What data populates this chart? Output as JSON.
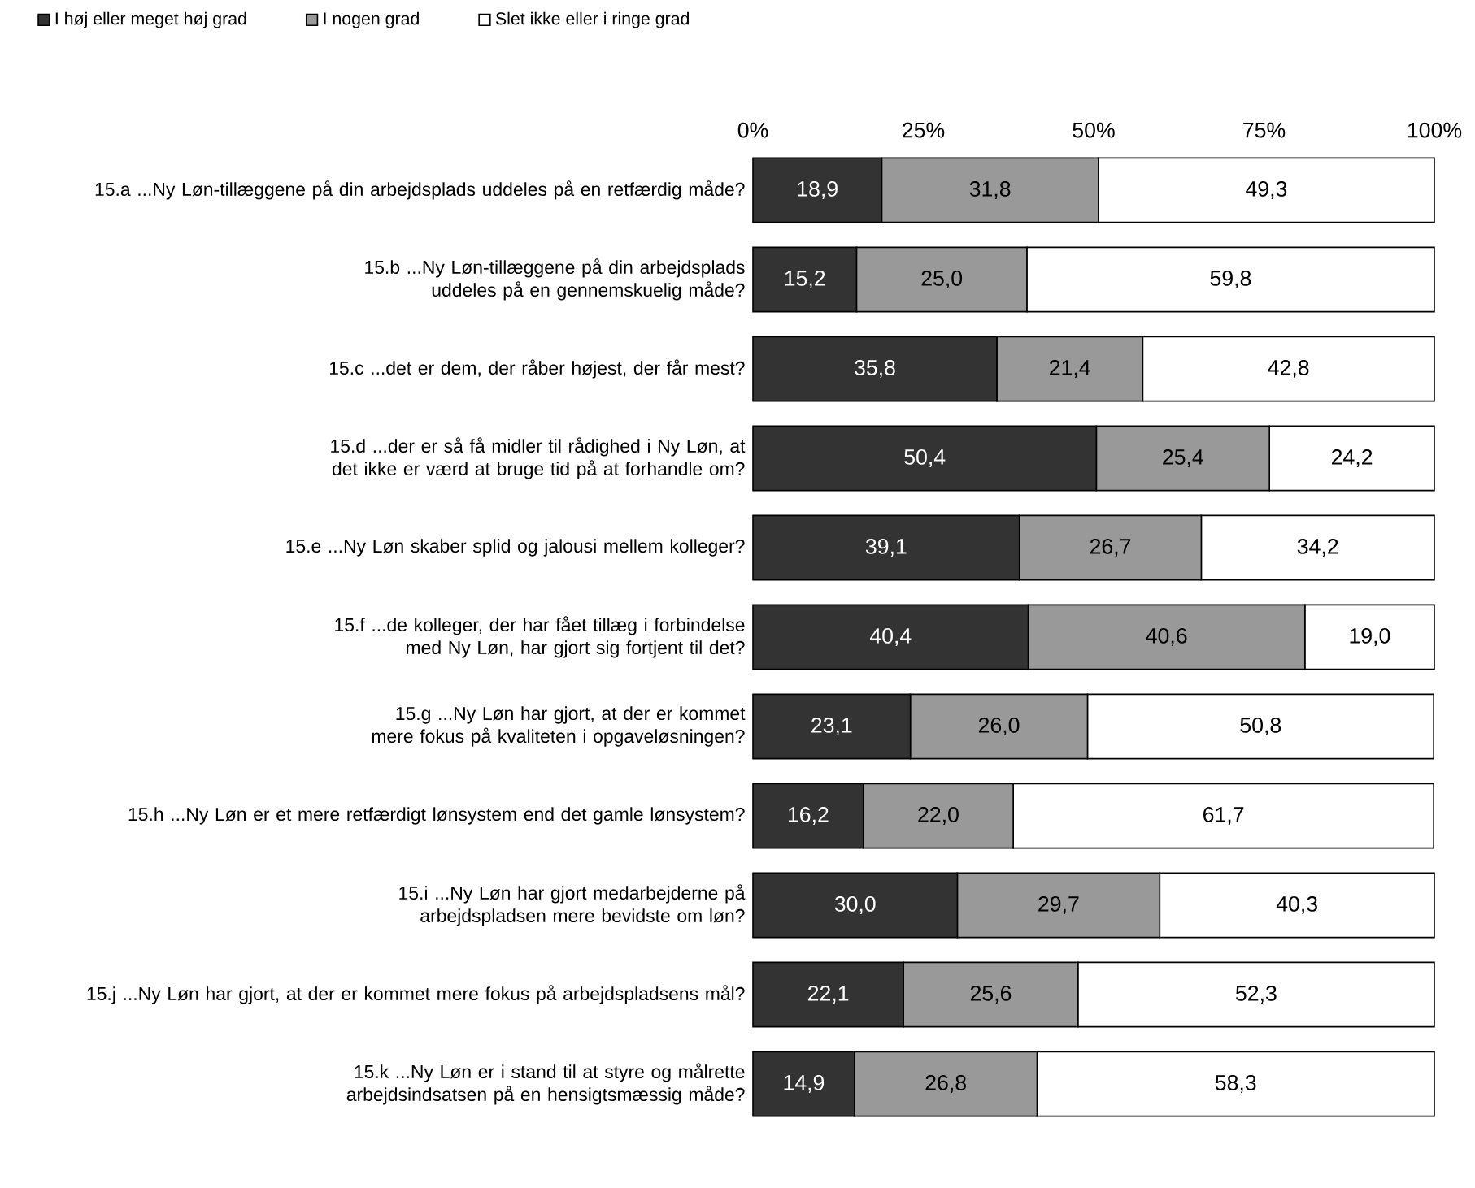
{
  "chart_data": {
    "type": "bar",
    "orientation": "horizontal",
    "stacked": true,
    "legend": "top left",
    "grid": false,
    "categories": [
      "15.a ...Ny Løn-tillæggene på din arbejdsplads uddeles på en retfærdig måde?",
      "15.b ...Ny Løn-tillæggene på din arbejdsplads uddeles på en gennemskuelig måde?",
      "15.c ...det er dem, der råber højest, der får mest?",
      "15.d ...der er så få midler til rådighed i Ny Løn, at det ikke er værd at bruge tid på at forhandle om?",
      "15.e ...Ny Løn skaber splid og jalousi mellem kolleger?",
      "15.f ...de kolleger, der har fået tillæg i forbindelse med Ny Løn, har gjort sig fortjent til det?",
      "15.g ...Ny Løn har gjort, at der er kommet mere fokus på kvaliteten i opgaveløsningen?",
      "15.h ...Ny Løn er et mere retfærdigt lønsystem end det gamle lønsystem?",
      "15.i ...Ny Løn har gjort medarbejderne på arbejdspladsen mere bevidste om løn?",
      "15.j ...Ny Løn har gjort, at der er kommet mere fokus på arbejdspladsens mål?",
      "15.k ...Ny Løn er i stand til at styre og målrette arbejdsindsatsen på en hensigtsmæssig måde?"
    ],
    "xlim": [
      0,
      100
    ],
    "xticks": [
      {
        "value": 0,
        "label": "0%"
      },
      {
        "value": 25,
        "label": "25%"
      },
      {
        "value": 50,
        "label": "50%"
      },
      {
        "value": 75,
        "label": "75%"
      },
      {
        "value": 100,
        "label": "100%"
      }
    ],
    "series": [
      {
        "name": "I høj eller meget høj grad",
        "color": "#333333",
        "values": [
          18.9,
          15.2,
          35.8,
          50.4,
          39.1,
          40.4,
          23.1,
          16.2,
          30.0,
          22.1,
          14.9
        ],
        "value_labels": [
          "18,9",
          "15,2",
          "35,8",
          "50,4",
          "39,1",
          "40,4",
          "23,1",
          "16,2",
          "30,0",
          "22,1",
          "14,9"
        ]
      },
      {
        "name": "I nogen grad",
        "color": "#999999",
        "values": [
          31.8,
          25.0,
          21.4,
          25.4,
          26.7,
          40.6,
          26.0,
          22.0,
          29.7,
          25.6,
          26.8
        ],
        "value_labels": [
          "31,8",
          "25,0",
          "21,4",
          "25,4",
          "26,7",
          "40,6",
          "26,0",
          "22,0",
          "29,7",
          "25,6",
          "26,8"
        ]
      },
      {
        "name": "Slet ikke eller i ringe grad",
        "color": "#ffffff",
        "values": [
          49.3,
          59.8,
          42.8,
          24.2,
          34.2,
          19.0,
          50.8,
          61.7,
          40.3,
          52.3,
          58.3
        ],
        "value_labels": [
          "49,3",
          "59,8",
          "42,8",
          "24,2",
          "34,2",
          "19,0",
          "50,8",
          "61,7",
          "40,3",
          "52,3",
          "58,3"
        ]
      }
    ]
  }
}
